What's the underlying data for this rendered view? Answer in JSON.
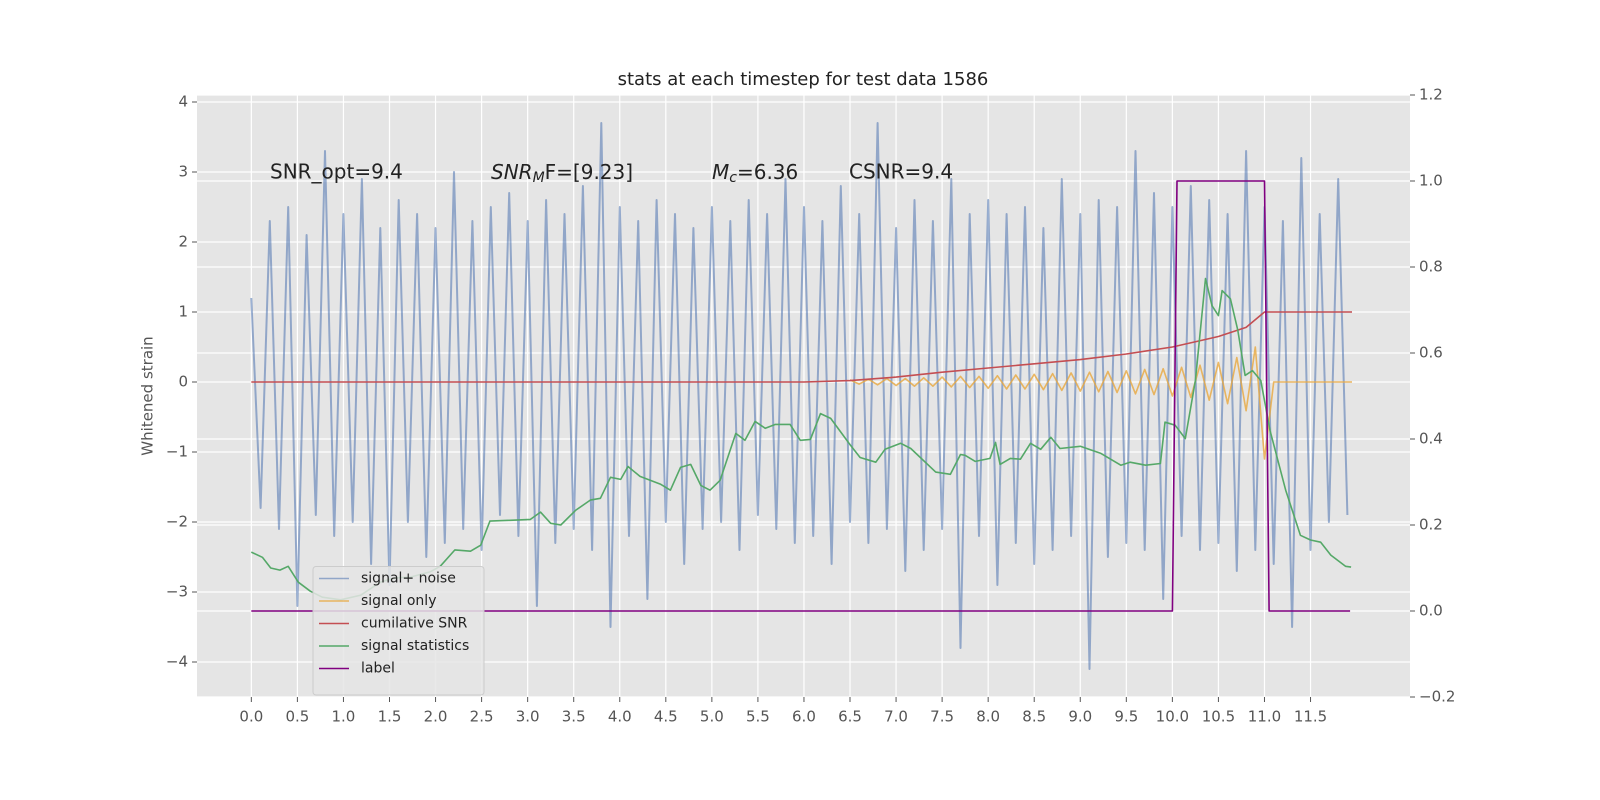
{
  "chart_data": {
    "type": "line",
    "title": "stats at each timestep for test data 1586",
    "ylabel": "Whitened strain",
    "annotations": [
      {
        "text": "SNR_opt=9.4"
      },
      {
        "base": "SNR",
        "sub": "M",
        "rest": "F=[9.23]"
      },
      {
        "base": "M",
        "sub": "c",
        "rest": "=6.36"
      },
      {
        "text": "CSNR=9.4"
      }
    ],
    "xlim": [
      -0.59,
      12.58
    ],
    "ylim": [
      -4.5,
      4.1
    ],
    "y2lim": [
      -0.2,
      1.2
    ],
    "xticks": [
      {
        "value": 0,
        "label": "0.0"
      },
      0.5,
      {
        "value": 1,
        "label": "1.0"
      },
      1.5,
      {
        "value": 2,
        "label": "2.0"
      },
      2.5,
      {
        "value": 3,
        "label": "3.0"
      },
      3.5,
      {
        "value": 4,
        "label": "4.0"
      },
      4.5,
      {
        "value": 5,
        "label": "5.0"
      },
      5.5,
      {
        "value": 6,
        "label": "6.0"
      },
      6.5,
      {
        "value": 7,
        "label": "7.0"
      },
      7.5,
      {
        "value": 8,
        "label": "8.0"
      },
      8.5,
      {
        "value": 9,
        "label": "9.0"
      },
      9.5,
      {
        "value": 10,
        "label": "10.0"
      },
      10.5,
      {
        "value": 11,
        "label": "11.0"
      },
      11.5
    ],
    "yticks": [
      {
        "value": -4,
        "label": "−4"
      },
      {
        "value": -3,
        "label": "−3"
      },
      {
        "value": -2,
        "label": "−2"
      },
      {
        "value": -1,
        "label": "−1"
      },
      0,
      1,
      2,
      3,
      4
    ],
    "y2ticks": [
      {
        "value": -0.2,
        "label": "−0.2"
      },
      {
        "value": 0,
        "label": "0.0"
      },
      0.2,
      0.4,
      0.6,
      0.8,
      {
        "value": 1,
        "label": "1.0"
      },
      1.2
    ],
    "grid": true,
    "legend_loc": "lower left",
    "series": [
      {
        "name": "signal+ noise",
        "color": "#4c72b0",
        "opacity": 0.55,
        "x": [
          0,
          0.1,
          0.2,
          0.3,
          0.4,
          0.5,
          0.6,
          0.7,
          0.8,
          0.9,
          1,
          1.1,
          1.2,
          1.3,
          1.4,
          1.5,
          1.6,
          1.7,
          1.8,
          1.9,
          2,
          2.1,
          2.2,
          2.3,
          2.4,
          2.5,
          2.6,
          2.7,
          2.8,
          2.9,
          3,
          3.1,
          3.2,
          3.3,
          3.4,
          3.5,
          3.6,
          3.7,
          3.8,
          3.9,
          4,
          4.1,
          4.2,
          4.3,
          4.4,
          4.5,
          4.6,
          4.7,
          4.8,
          4.9,
          5,
          5.1,
          5.2,
          5.3,
          5.4,
          5.5,
          5.6,
          5.7,
          5.8,
          5.9,
          6,
          6.1,
          6.2,
          6.3,
          6.4,
          6.5,
          6.6,
          6.7,
          6.8,
          6.9,
          7,
          7.1,
          7.2,
          7.3,
          7.4,
          7.5,
          7.6,
          7.7,
          7.8,
          7.9,
          8,
          8.1,
          8.2,
          8.3,
          8.4,
          8.5,
          8.6,
          8.7,
          8.8,
          8.9,
          9,
          9.1,
          9.2,
          9.3,
          9.4,
          9.5,
          9.6,
          9.7,
          9.8,
          9.9,
          10,
          10.1,
          10.2,
          10.3,
          10.4,
          10.5,
          10.6,
          10.7,
          10.8,
          10.9,
          11,
          11.1,
          11.2,
          11.3,
          11.4,
          11.5,
          11.6,
          11.7,
          11.8,
          11.9
        ],
        "values": [
          1.2,
          -1.8,
          2.3,
          -2.1,
          2.5,
          -3.2,
          2.1,
          -1.9,
          3.3,
          -2.2,
          2.4,
          -2.0,
          2.9,
          -2.6,
          2.2,
          -2.9,
          2.6,
          -2.0,
          2.4,
          -2.5,
          2.2,
          -2.3,
          3.0,
          -2.1,
          2.3,
          -2.4,
          2.5,
          -1.9,
          2.7,
          -2.2,
          2.3,
          -3.2,
          2.6,
          -2.3,
          2.4,
          -2.1,
          2.8,
          -2.4,
          3.7,
          -3.5,
          2.5,
          -2.2,
          2.3,
          -3.1,
          2.6,
          -2.0,
          2.4,
          -2.6,
          2.2,
          -2.1,
          2.5,
          -2.0,
          2.3,
          -2.4,
          2.6,
          -1.9,
          2.4,
          -2.1,
          2.9,
          -2.3,
          2.5,
          -2.2,
          2.3,
          -2.6,
          2.8,
          -2.0,
          2.4,
          -2.3,
          3.7,
          -2.1,
          2.2,
          -2.7,
          2.6,
          -2.4,
          2.3,
          -2.1,
          2.9,
          -3.8,
          2.4,
          -2.2,
          2.6,
          -2.9,
          2.4,
          -2.3,
          2.5,
          -2.6,
          2.2,
          -2.4,
          2.9,
          -2.2,
          2.4,
          -4.1,
          2.6,
          -2.5,
          2.5,
          -2.3,
          3.3,
          -2.4,
          2.7,
          -3.1,
          2.5,
          -2.2,
          2.8,
          -2.4,
          2.6,
          -2.3,
          2.4,
          -2.7,
          3.3,
          -2.4,
          2.5,
          -2.6,
          2.3,
          -3.5,
          3.2,
          -2.4,
          2.4,
          -2.0,
          2.9,
          -1.9
        ]
      },
      {
        "name": "signal only",
        "color": "#e8a83d",
        "opacity": 0.8,
        "x": [
          6.5,
          6.6,
          6.7,
          6.8,
          6.9,
          7,
          7.1,
          7.2,
          7.3,
          7.4,
          7.5,
          7.6,
          7.7,
          7.8,
          7.9,
          8,
          8.1,
          8.2,
          8.3,
          8.4,
          8.5,
          8.6,
          8.7,
          8.8,
          8.9,
          9,
          9.1,
          9.2,
          9.3,
          9.4,
          9.5,
          9.6,
          9.7,
          9.8,
          9.9,
          10,
          10.1,
          10.2,
          10.3,
          10.4,
          10.5,
          10.6,
          10.7,
          10.8,
          10.9,
          11,
          11.1,
          11.95
        ],
        "values": [
          0.03,
          -0.03,
          0.04,
          -0.04,
          0.05,
          -0.05,
          0.05,
          -0.06,
          0.06,
          -0.06,
          0.07,
          -0.07,
          0.08,
          -0.08,
          0.08,
          -0.09,
          0.09,
          -0.1,
          0.1,
          -0.1,
          0.11,
          -0.11,
          0.12,
          -0.12,
          0.13,
          -0.13,
          0.14,
          -0.14,
          0.15,
          -0.15,
          0.16,
          -0.17,
          0.18,
          -0.18,
          0.19,
          -0.2,
          0.21,
          -0.22,
          0.24,
          -0.26,
          0.28,
          -0.31,
          0.35,
          -0.41,
          0.5,
          -1.1,
          0,
          0
        ]
      },
      {
        "name": "cumilative SNR",
        "color": "#c44e52",
        "x": [
          0,
          6,
          6.5,
          7,
          7.5,
          8,
          8.5,
          9,
          9.5,
          10,
          10.5,
          10.8,
          11,
          11.95
        ],
        "values": [
          0,
          0,
          0.02,
          0.07,
          0.14,
          0.2,
          0.26,
          0.32,
          0.4,
          0.5,
          0.65,
          0.78,
          1,
          1
        ]
      },
      {
        "name": "signal statistics",
        "color": "#55a868",
        "axis": "y2",
        "x": [
          0,
          0.12,
          0.21,
          0.31,
          0.4,
          0.51,
          0.64,
          0.77,
          0.97,
          1.19,
          1.4,
          1.56,
          1.73,
          1.94,
          2.05,
          2.21,
          2.38,
          2.49,
          2.59,
          2.81,
          3.03,
          3.14,
          3.25,
          3.36,
          3.52,
          3.68,
          3.79,
          3.9,
          4.01,
          4.09,
          4.22,
          4.44,
          4.55,
          4.66,
          4.77,
          4.88,
          4.98,
          5.09,
          5.26,
          5.36,
          5.47,
          5.58,
          5.69,
          5.85,
          5.96,
          6.07,
          6.18,
          6.29,
          6.5,
          6.61,
          6.78,
          6.88,
          7.05,
          7.16,
          7.43,
          7.59,
          7.7,
          7.75,
          7.86,
          8.02,
          8.08,
          8.13,
          8.24,
          8.35,
          8.46,
          8.57,
          8.68,
          8.78,
          9,
          9.22,
          9.44,
          9.54,
          9.71,
          9.87,
          9.92,
          10.03,
          10.14,
          10.25,
          10.36,
          10.43,
          10.5,
          10.54,
          10.63,
          10.71,
          10.79,
          10.87,
          10.96,
          11.06,
          11.23,
          11.39,
          11.5,
          11.61,
          11.72,
          11.88,
          11.94
        ],
        "values": [
          0.137,
          0.125,
          0.1,
          0.095,
          0.104,
          0.067,
          0.046,
          0.032,
          0.026,
          0.037,
          0.067,
          0.077,
          0.079,
          0.091,
          0.104,
          0.142,
          0.139,
          0.153,
          0.209,
          0.211,
          0.213,
          0.23,
          0.204,
          0.2,
          0.234,
          0.258,
          0.262,
          0.311,
          0.306,
          0.336,
          0.313,
          0.295,
          0.281,
          0.334,
          0.341,
          0.292,
          0.281,
          0.304,
          0.413,
          0.397,
          0.441,
          0.425,
          0.434,
          0.434,
          0.397,
          0.399,
          0.459,
          0.448,
          0.387,
          0.357,
          0.346,
          0.376,
          0.39,
          0.378,
          0.323,
          0.318,
          0.364,
          0.362,
          0.348,
          0.355,
          0.392,
          0.341,
          0.355,
          0.353,
          0.39,
          0.376,
          0.404,
          0.378,
          0.383,
          0.367,
          0.339,
          0.346,
          0.339,
          0.343,
          0.439,
          0.432,
          0.401,
          0.536,
          0.773,
          0.71,
          0.687,
          0.745,
          0.726,
          0.653,
          0.548,
          0.559,
          0.536,
          0.42,
          0.281,
          0.176,
          0.165,
          0.16,
          0.13,
          0.104,
          0.102
        ]
      },
      {
        "name": "label",
        "color": "#800080",
        "axis": "y2",
        "x": [
          0,
          10,
          10.05,
          11,
          11.05,
          11.93
        ],
        "values": [
          0,
          0,
          1,
          1,
          0,
          0
        ]
      }
    ]
  }
}
